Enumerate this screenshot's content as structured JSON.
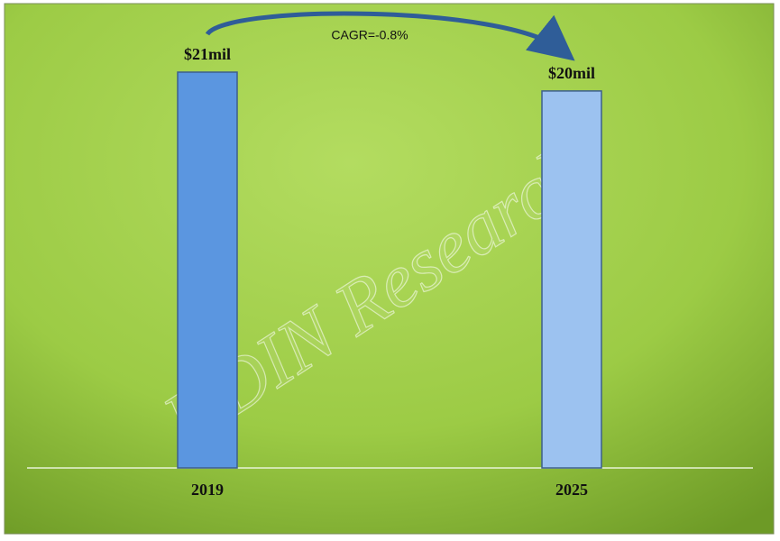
{
  "chart_data": {
    "type": "bar",
    "categories": [
      "2019",
      "2025"
    ],
    "values": [
      21,
      20
    ],
    "value_labels": [
      "$21mil",
      "$20mil"
    ],
    "colors": [
      "#5b96e0",
      "#9cc2f0"
    ],
    "annotation": "CAGR=-0.8%",
    "watermark": "HDIN Research"
  }
}
